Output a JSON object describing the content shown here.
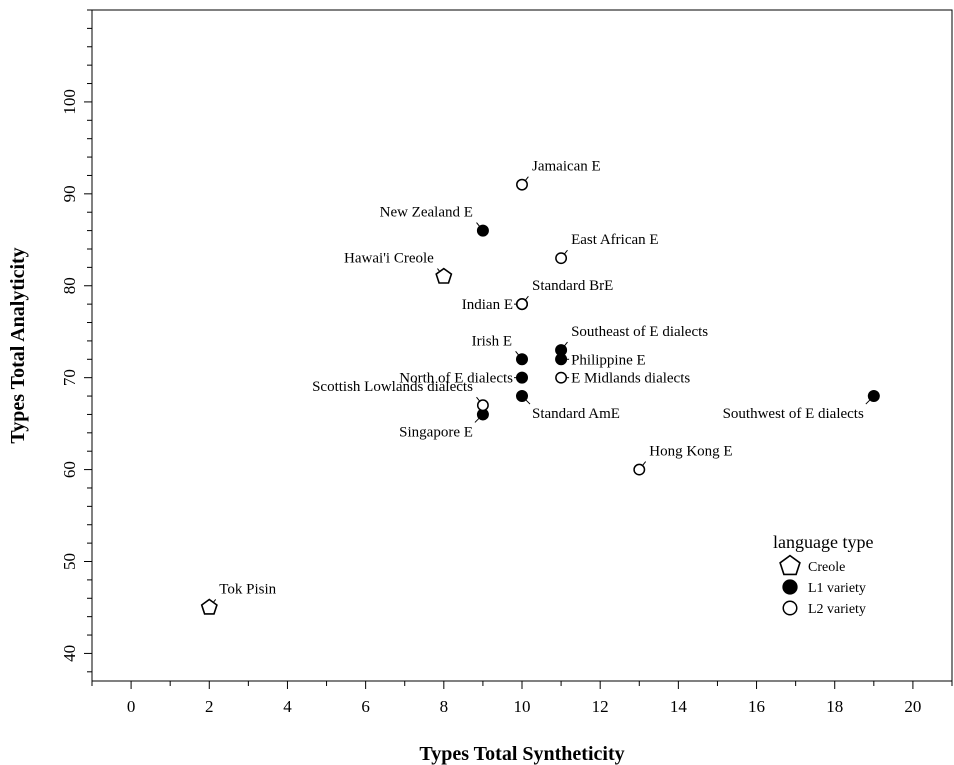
{
  "chart_data": {
    "type": "scatter",
    "xlabel": "Types Total Syntheticity",
    "ylabel": "Types Total Analyticity",
    "xlim": [
      -1,
      21
    ],
    "ylim": [
      37,
      110
    ],
    "x_ticks": [
      0,
      2,
      4,
      6,
      8,
      10,
      12,
      14,
      16,
      18,
      20
    ],
    "y_ticks": [
      40,
      50,
      60,
      70,
      80,
      90,
      100
    ],
    "grid": false,
    "legend": {
      "title": "language type",
      "placement": "bottom-right",
      "entries": [
        {
          "label": "Creole",
          "marker": "pentagon-open"
        },
        {
          "label": "L1 variety",
          "marker": "circle-filled"
        },
        {
          "label": "L2 variety",
          "marker": "circle-open"
        }
      ]
    },
    "points": [
      {
        "label": "Tok Pisin",
        "x": 2,
        "y": 45,
        "type": "Creole",
        "label_pos": "upper-right"
      },
      {
        "label": "Hawai'i Creole",
        "x": 8,
        "y": 81,
        "type": "Creole",
        "label_pos": "upper-left"
      },
      {
        "label": "New Zealand E",
        "x": 9,
        "y": 86,
        "type": "L1 variety",
        "label_pos": "upper-left"
      },
      {
        "label": "Singapore E",
        "x": 9,
        "y": 66,
        "type": "L1 variety",
        "label_pos": "lower-left"
      },
      {
        "label": "Scottish Lowlands dialects",
        "x": 9,
        "y": 67,
        "type": "L2 variety",
        "label_pos": "upper-left"
      },
      {
        "label": "Jamaican E",
        "x": 10,
        "y": 91,
        "type": "L2 variety",
        "label_pos": "upper-right"
      },
      {
        "label": "Standard BrE",
        "x": 10,
        "y": 78,
        "type": "L2 variety",
        "label_pos": "upper-right"
      },
      {
        "label": "Indian E",
        "x": 10,
        "y": 78,
        "type": "L2 variety",
        "label_pos": "left"
      },
      {
        "label": "Irish E",
        "x": 10,
        "y": 72,
        "type": "L1 variety",
        "label_pos": "upper-left"
      },
      {
        "label": "North of E dialects",
        "x": 10,
        "y": 70,
        "type": "L1 variety",
        "label_pos": "left"
      },
      {
        "label": "Standard AmE",
        "x": 10,
        "y": 68,
        "type": "L1 variety",
        "label_pos": "lower-right"
      },
      {
        "label": "East African E",
        "x": 11,
        "y": 83,
        "type": "L2 variety",
        "label_pos": "upper-right"
      },
      {
        "label": "Southeast of E dialects",
        "x": 11,
        "y": 73,
        "type": "L1 variety",
        "label_pos": "upper-right"
      },
      {
        "label": "Philippine E",
        "x": 11,
        "y": 72,
        "type": "L1 variety",
        "label_pos": "right"
      },
      {
        "label": "E Midlands dialects",
        "x": 11,
        "y": 70,
        "type": "L2 variety",
        "label_pos": "right"
      },
      {
        "label": "Hong Kong E",
        "x": 13,
        "y": 60,
        "type": "L2 variety",
        "label_pos": "upper-right"
      },
      {
        "label": "Southwest of E dialects",
        "x": 19,
        "y": 68,
        "type": "L1 variety",
        "label_pos": "lower-left"
      }
    ]
  }
}
